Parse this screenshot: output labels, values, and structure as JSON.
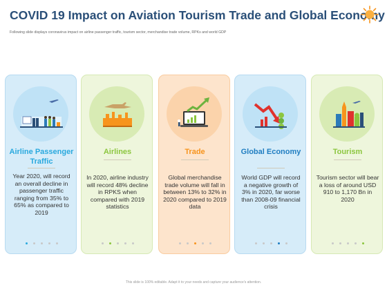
{
  "header": {
    "title": "COVID 19 Impact on Aviation Tourism Trade and Global Economy",
    "subtitle": "Following slide displays coronavirus impact on airline passenger traffic, tourism sector, merchandise trade volume, RPKs and world GDP"
  },
  "cards": [
    {
      "title": "Airline Passenger Traffic",
      "body": "Year 2020, will record an overall decline in passenger traffic ranging from 35% to 65% as compared to 2019",
      "accent": "#2aa9de",
      "bg": "#d6ecf9",
      "icon": "airport-travelers-icon"
    },
    {
      "title": "Airlines",
      "body": "In 2020, airline industry will record 48% decline in RPKS when compared with 2019 statistics",
      "accent": "#8cc63f",
      "bg": "#eef6dc",
      "icon": "airline-cityscape-icon"
    },
    {
      "title": "Trade",
      "body": "Global merchandise trade volume will fall in between 13% to 32% in 2020 compared to 2019 data",
      "accent": "#f7941d",
      "bg": "#fde4cc",
      "icon": "trade-growth-chart-icon"
    },
    {
      "title": "Global Economy",
      "body": "World GDP will record a negative growth of 3% in 2020, far worse than 2008-09 financial crisis",
      "accent": "#1f7dc1",
      "bg": "#d6ecf9",
      "icon": "economy-decline-chart-icon"
    },
    {
      "title": "Tourism",
      "body": "Tourism sector will bear a loss of around USD 910 to 1,170 Bn in 2020",
      "accent": "#8cc63f",
      "bg": "#eef6dc",
      "icon": "tourism-landmarks-icon"
    }
  ],
  "footer": {
    "text": "This slide is 100% editable. Adapt it to your needs and capture your audience's attention."
  }
}
